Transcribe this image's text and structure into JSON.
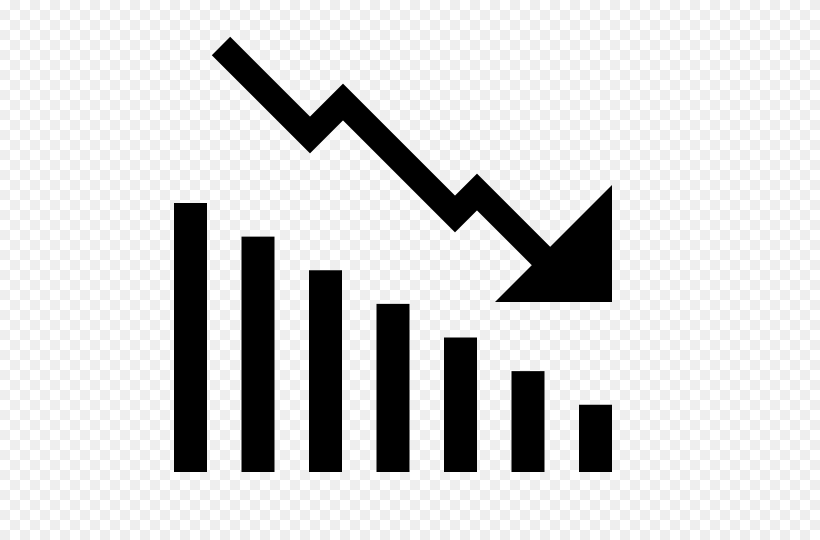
{
  "icon": {
    "name": "declining-chart-icon",
    "fill_color": "#000000",
    "background": "transparent-checkerboard"
  },
  "bars": {
    "count": 7,
    "relative_heights": [
      1.0,
      0.875,
      0.75,
      0.625,
      0.5,
      0.375,
      0.25
    ]
  },
  "trend_arrow": {
    "direction": "down-right"
  }
}
